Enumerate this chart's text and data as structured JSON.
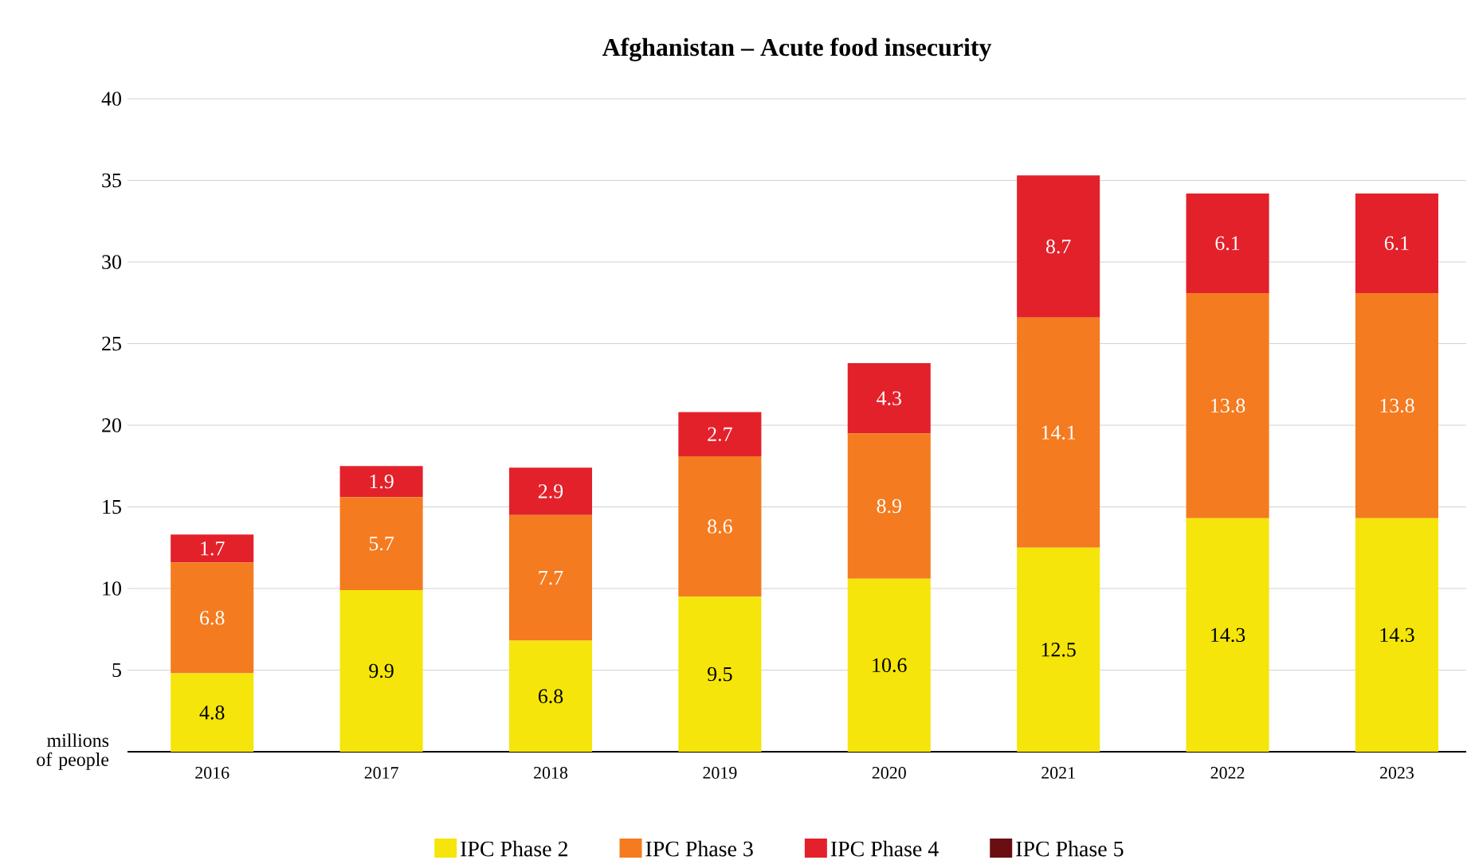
{
  "chart_data": {
    "type": "bar",
    "stacked": true,
    "title": "Afghanistan – Acute food insecurity",
    "ylabel": "millions of people",
    "categories": [
      "2016",
      "2017",
      "2018",
      "2019",
      "2020",
      "2021",
      "2022",
      "2023"
    ],
    "series": [
      {
        "name": "IPC Phase 2",
        "color": "#f5e50a",
        "values": [
          4.8,
          9.9,
          6.8,
          9.5,
          10.6,
          12.5,
          14.3,
          14.3
        ]
      },
      {
        "name": "IPC Phase 3",
        "color": "#f47b20",
        "values": [
          6.8,
          5.7,
          7.7,
          8.6,
          8.9,
          14.1,
          13.8,
          13.8
        ]
      },
      {
        "name": "IPC Phase 4",
        "color": "#e3212b",
        "values": [
          1.7,
          1.9,
          2.9,
          2.7,
          4.3,
          8.7,
          6.1,
          6.1
        ]
      },
      {
        "name": "IPC Phase 5",
        "color": "#6b0e12",
        "values": [
          null,
          null,
          null,
          null,
          null,
          null,
          null,
          null
        ]
      }
    ],
    "ylim": [
      0,
      40
    ],
    "yticks": [
      5,
      10,
      15,
      20,
      25,
      30,
      35,
      40
    ],
    "grid": "y",
    "legend": "bottom",
    "data_labels": true
  }
}
